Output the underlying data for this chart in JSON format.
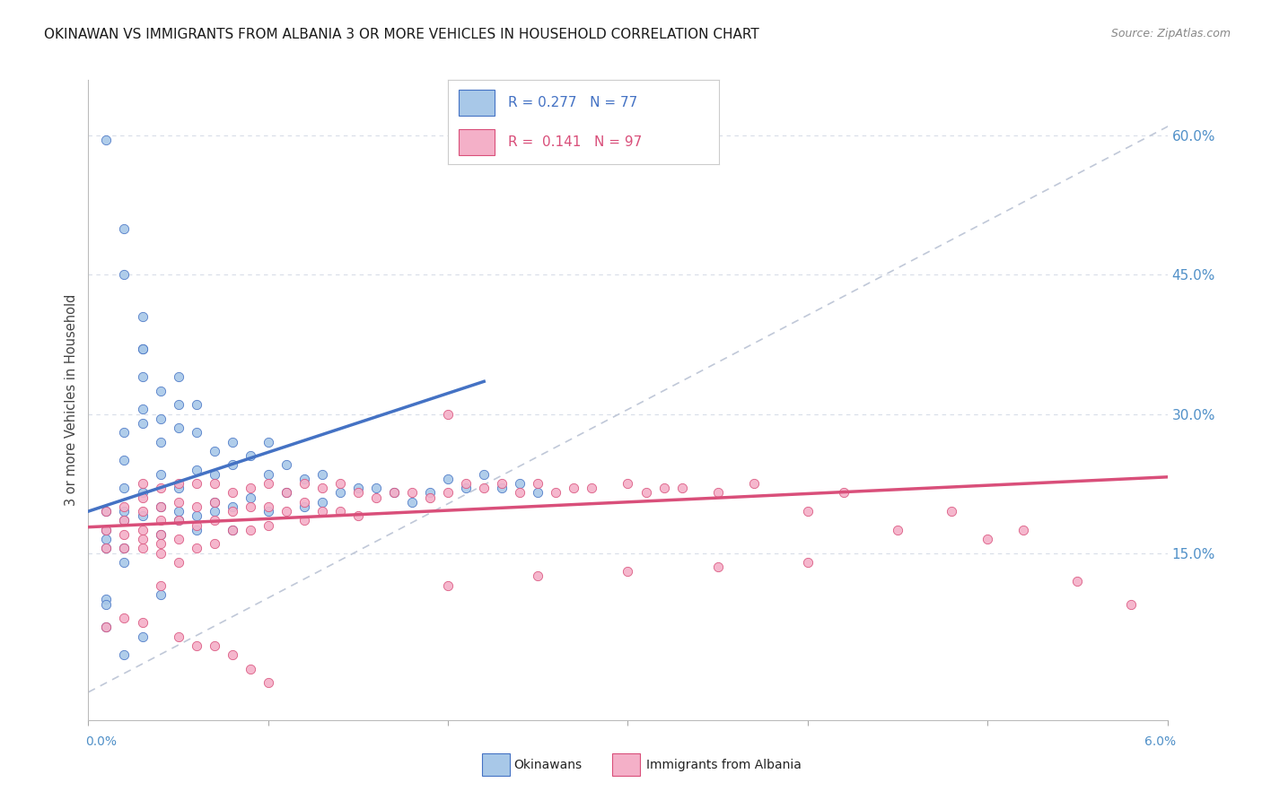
{
  "title": "OKINAWAN VS IMMIGRANTS FROM ALBANIA 3 OR MORE VEHICLES IN HOUSEHOLD CORRELATION CHART",
  "source": "Source: ZipAtlas.com",
  "ylabel": "3 or more Vehicles in Household",
  "right_yticks": [
    0.15,
    0.3,
    0.45,
    0.6
  ],
  "right_yticklabels": [
    "15.0%",
    "30.0%",
    "45.0%",
    "60.0%"
  ],
  "xmin": 0.0,
  "xmax": 0.06,
  "ymin": -0.03,
  "ymax": 0.66,
  "color_okinawan": "#a8c8e8",
  "color_albania": "#f4b0c8",
  "color_trend_okinawan": "#4472c4",
  "color_trend_albania": "#d94f7a",
  "color_diagonal": "#c0c8d8",
  "background_color": "#ffffff",
  "title_color": "#1a1a1a",
  "source_color": "#888888",
  "right_label_color": "#5090c8",
  "grid_color": "#d8dde8",
  "trend_ok_x0": 0.0,
  "trend_ok_x1": 0.022,
  "trend_ok_y0": 0.195,
  "trend_ok_y1": 0.335,
  "trend_alb_x0": 0.0,
  "trend_alb_x1": 0.06,
  "trend_alb_y0": 0.178,
  "trend_alb_y1": 0.232
}
